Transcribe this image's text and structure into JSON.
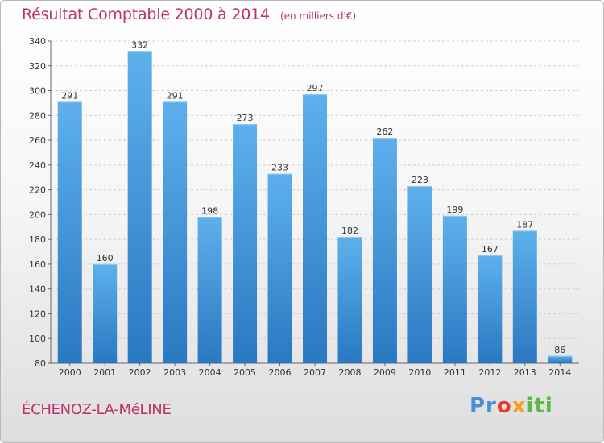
{
  "title": "Résultat Comptable 2000 à 2014",
  "unit_note": "(en milliers d'€)",
  "commune": "ÉCHENOZ-LA-MéLINE",
  "logo": {
    "p1": "Pr",
    "p2": "o",
    "p3": "x",
    "p4": "iti"
  },
  "colors": {
    "bar": "#4a9fe0",
    "bar_dark": "#2a78c2",
    "title": "#c0306a",
    "grid": "#cfcfcf"
  },
  "chart_data": {
    "type": "bar",
    "categories": [
      "2000",
      "2001",
      "2002",
      "2003",
      "2004",
      "2005",
      "2006",
      "2007",
      "2008",
      "2009",
      "2010",
      "2011",
      "2012",
      "2013",
      "2014"
    ],
    "values": [
      291,
      160,
      332,
      291,
      198,
      273,
      233,
      297,
      182,
      262,
      223,
      199,
      167,
      187,
      86
    ],
    "title": "Résultat Comptable 2000 à 2014",
    "xlabel": "",
    "ylabel": "",
    "ylim": [
      80,
      340
    ],
    "yticks": [
      80,
      100,
      120,
      140,
      160,
      180,
      200,
      220,
      240,
      260,
      280,
      300,
      320,
      340
    ],
    "grid": true,
    "data_labels": true
  }
}
